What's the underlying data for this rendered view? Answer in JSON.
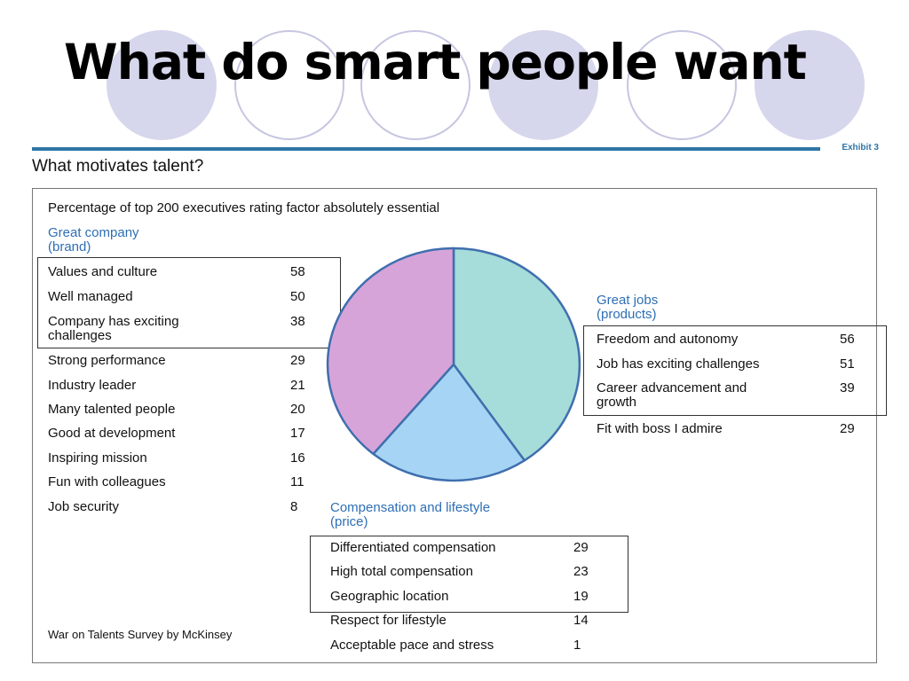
{
  "title": "What do smart people want",
  "exhibit_label": "Exhibit 3",
  "exhibit_title": "What motivates talent?",
  "source_note": "War on Talents Survey by McKinsey",
  "colors": {
    "title": "#000000",
    "rule": "#2f75a6",
    "group_title": "#2e6fb4",
    "pie_outline": "#3f6fae",
    "brand_slice": "#d7a4d9",
    "products_slice": "#a6dcd9",
    "price_slice": "#a6d4f4",
    "deco_circle": "#d6d6ec"
  },
  "chart_data": {
    "type": "pie",
    "title": "Percentage of top 200 executives rating factor absolutely essential",
    "slices": [
      {
        "name": "Great jobs (products)",
        "color": "#a6dcd9"
      },
      {
        "name": "Compensation and lifestyle (price)",
        "color": "#a6d4f4"
      },
      {
        "name": "Great company (brand)",
        "color": "#d7a4d9"
      }
    ],
    "slice_fractions": [
      0.405,
      0.205,
      0.39
    ],
    "groups": {
      "brand": {
        "title_lines": [
          "Great company",
          "(brand)"
        ],
        "items": [
          {
            "label": "Values and culture",
            "value": "58"
          },
          {
            "label": "Well managed",
            "value": "50"
          },
          {
            "label": "Company has exciting challenges",
            "label_lines": [
              "Company has exciting",
              "challenges"
            ],
            "value": "38"
          },
          {
            "label": "Strong performance",
            "value": "29"
          },
          {
            "label": "Industry leader",
            "value": "21"
          },
          {
            "label": "Many talented people",
            "value": "20"
          },
          {
            "label": "Good at development",
            "value": "17"
          },
          {
            "label": "Inspiring mission",
            "value": "16"
          },
          {
            "label": "Fun with colleagues",
            "value": "11"
          },
          {
            "label": "Job security",
            "value": "8"
          }
        ],
        "highlighted_count": 3
      },
      "products": {
        "title_lines": [
          "Great jobs",
          "(products)"
        ],
        "items": [
          {
            "label": "Freedom and autonomy",
            "value": "56"
          },
          {
            "label": "Job has exciting challenges",
            "value": "51"
          },
          {
            "label": "Career advancement and growth",
            "label_lines": [
              "Career advancement and",
              "growth"
            ],
            "value": "39"
          },
          {
            "label": "Fit with boss I admire",
            "value": "29"
          }
        ],
        "highlighted_count": 3
      },
      "price": {
        "title_lines": [
          "Compensation and lifestyle",
          "(price)"
        ],
        "items": [
          {
            "label": "Differentiated compensation",
            "value": "29"
          },
          {
            "label": "High total compensation",
            "value": "23"
          },
          {
            "label": "Geographic location",
            "value": "19"
          },
          {
            "label": "Respect for lifestyle",
            "value": "14"
          },
          {
            "label": "Acceptable pace and stress",
            "value": "1"
          }
        ],
        "highlighted_count": 3
      }
    }
  }
}
